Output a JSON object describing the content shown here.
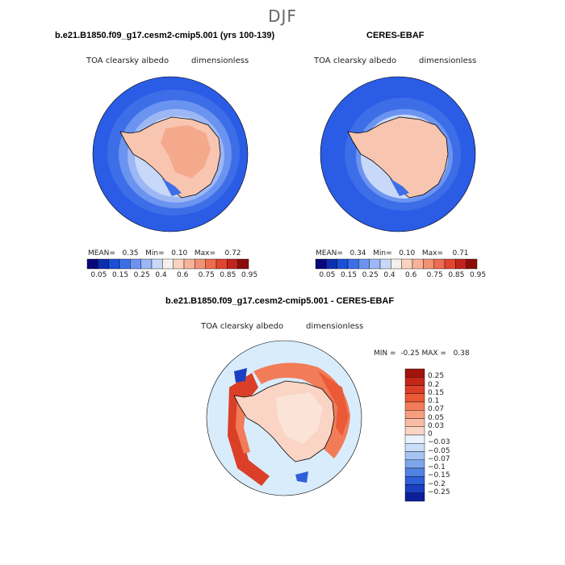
{
  "season": "DJF",
  "colors": {
    "ocean_blue": "#2a5ce6",
    "land_peach": "#f8c5b0",
    "interior_orange": "#f4a98c",
    "diff_background": "#d9ecfb",
    "coast_line": "#000000"
  },
  "panel1": {
    "title": "b.e21.B1850.f09_g17.cesm2-cmip5.001 (yrs 100-139)",
    "variable": "TOA clearsky albedo",
    "units": "dimensionless",
    "stats": {
      "mean_label": "MEAN=",
      "mean": "0.35",
      "min_label": "Min=",
      "min": "0.10",
      "max_label": "Max=",
      "max": "0.72"
    }
  },
  "panel2": {
    "title": "CERES-EBAF",
    "variable": "TOA clearsky albedo",
    "units": "dimensionless",
    "stats": {
      "mean_label": "MEAN=",
      "mean": "0.34",
      "min_label": "Min=",
      "min": "0.10",
      "max_label": "Max=",
      "max": "0.71"
    }
  },
  "abs_colorbar": {
    "colors": [
      "#08087a",
      "#0c2fb0",
      "#1a4fd8",
      "#3d6ee8",
      "#6b93f0",
      "#9db7f5",
      "#c7d8f8",
      "#f6f0ec",
      "#f9d2c0",
      "#f6b39a",
      "#f29274",
      "#ec6d4f",
      "#e0462f",
      "#c2231b",
      "#8c0c0c"
    ],
    "labels": [
      "0.05",
      "0.15",
      "0.25",
      "0.4",
      "0.6",
      "0.75",
      "0.85",
      "0.95"
    ]
  },
  "panel3": {
    "title": "b.e21.B1850.f09_g17.cesm2-cmip5.001 - CERES-EBAF",
    "variable": "TOA clearsky albedo",
    "units": "dimensionless",
    "min_label": "MIN =",
    "min": "-0.25",
    "max_label": "MAX =",
    "max": "0.38"
  },
  "diff_colorbar": {
    "colors": [
      "#a0140c",
      "#c4261a",
      "#dc3f28",
      "#ea5a38",
      "#f27c58",
      "#f69e80",
      "#f8bca4",
      "#fad4c4",
      "#ecf2fb",
      "#c9def6",
      "#a6c4f2",
      "#7ea6ec",
      "#5283e4",
      "#2f5fd8",
      "#1a3fc0",
      "#0c1f9a"
    ],
    "labels": [
      "0.25",
      "0.2",
      "0.15",
      "0.1",
      "0.07",
      "0.05",
      "0.03",
      "0",
      "−0.03",
      "−0.05",
      "−0.07",
      "−0.1",
      "−0.15",
      "−0.2",
      "−0.25"
    ]
  }
}
